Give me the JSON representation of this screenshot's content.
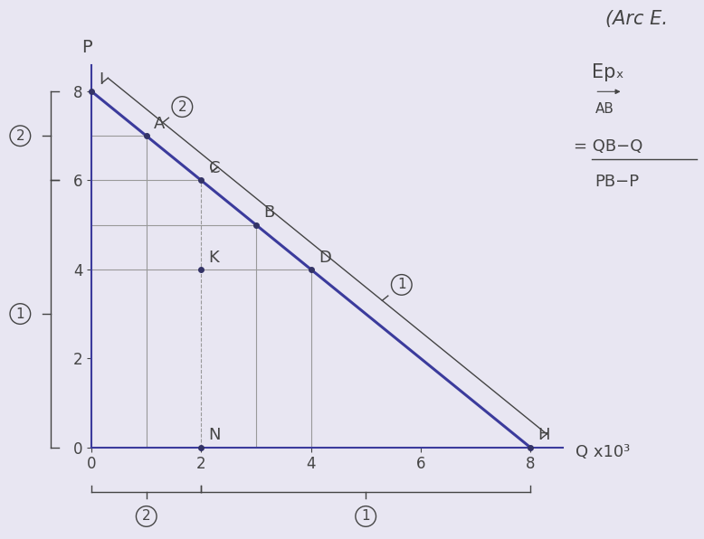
{
  "chart_data": {
    "type": "line",
    "x_label": "Q x10³",
    "y_label": "P",
    "x": [
      0,
      8
    ],
    "values": [
      8,
      0
    ],
    "color": "#3b3b9c",
    "xlim": [
      0,
      8.6
    ],
    "ylim": [
      0,
      8.6
    ],
    "xticks": [
      0,
      2,
      4,
      6,
      8
    ],
    "yticks": [
      0,
      2,
      4,
      6,
      8
    ],
    "points": [
      {
        "label": "I",
        "x": 0,
        "y": 8
      },
      {
        "label": "A",
        "x": 1,
        "y": 7
      },
      {
        "label": "C",
        "x": 2,
        "y": 6
      },
      {
        "label": "B",
        "x": 3,
        "y": 5
      },
      {
        "label": "D",
        "x": 4,
        "y": 4
      },
      {
        "label": "H",
        "x": 8,
        "y": 0
      },
      {
        "label": "K",
        "x": 2,
        "y": 4
      },
      {
        "label": "N",
        "x": 2,
        "y": 0
      }
    ],
    "braces": [
      {
        "axis": "y",
        "from": 6,
        "to": 8,
        "text": "2"
      },
      {
        "axis": "y",
        "from": 0,
        "to": 6,
        "text": "1"
      },
      {
        "axis": "x",
        "from": 0,
        "to": 2,
        "text": "2"
      },
      {
        "axis": "x",
        "from": 2,
        "to": 8,
        "text": "1"
      },
      {
        "axis": "curve",
        "from": 0,
        "to": 2,
        "text": "2"
      },
      {
        "axis": "curve",
        "from": 2,
        "to": 8,
        "text": "1"
      }
    ],
    "annotations": [
      "(Arc E.",
      "Epₓ",
      "AB",
      "= QB−Q",
      "PB−P"
    ]
  }
}
